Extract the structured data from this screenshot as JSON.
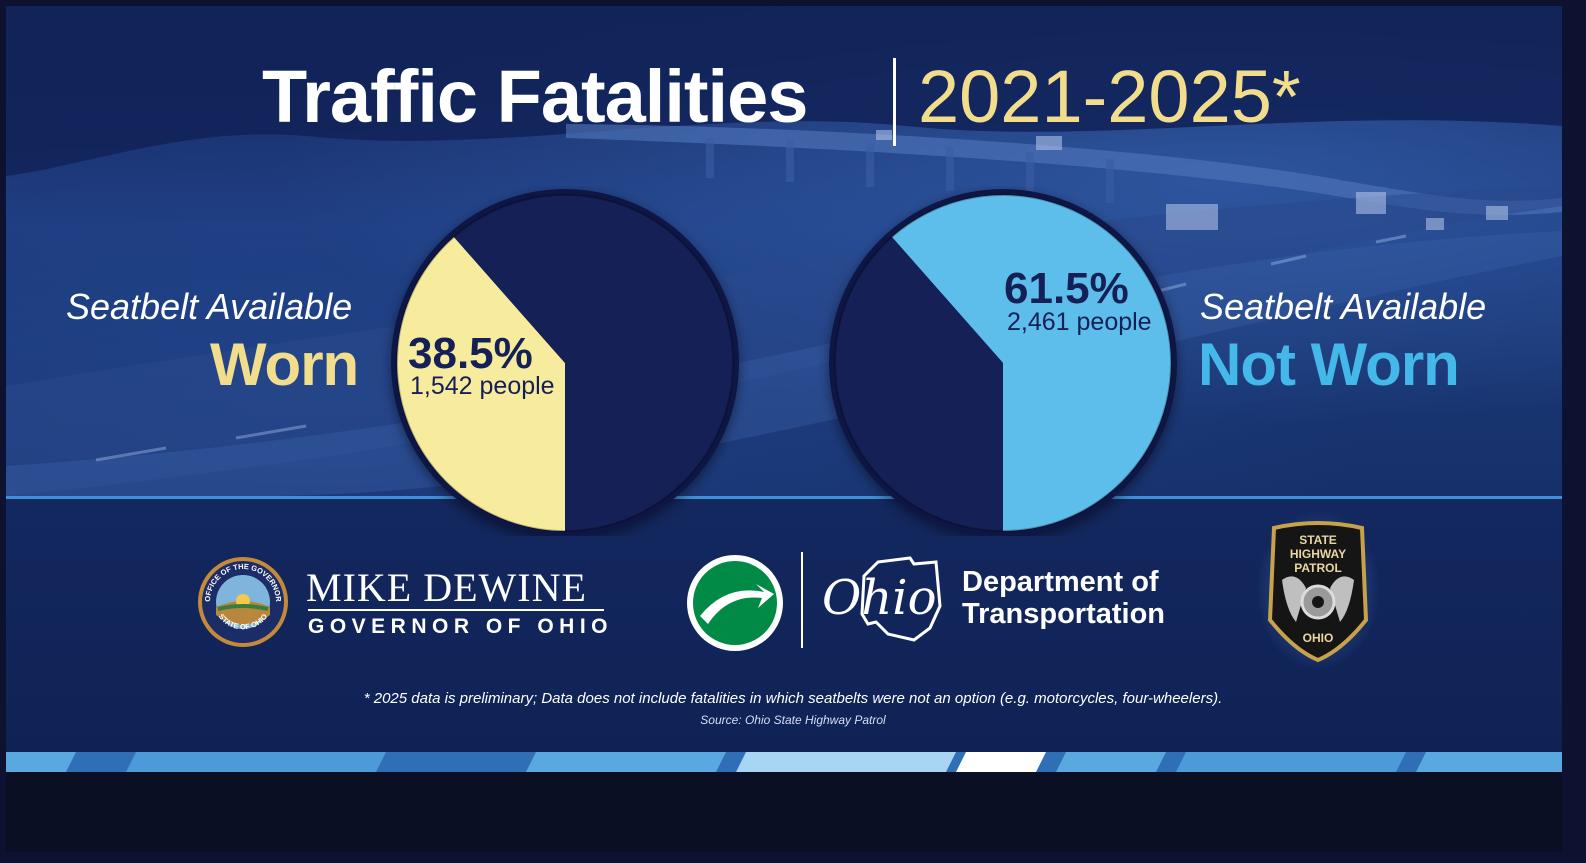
{
  "title": {
    "main": "Traffic Fatalities",
    "years": "2021-2025*"
  },
  "chart_data": [
    {
      "type": "pie",
      "title": "",
      "label_top": "Seatbelt Available",
      "label_big": "Worn",
      "highlight": {
        "name": "Worn",
        "percent": 38.5,
        "value_label": "38.5%",
        "people": "1,542 people"
      },
      "slices": [
        {
          "name": "Worn",
          "percent": 38.5,
          "color": "#f7ec9e"
        },
        {
          "name": "Not Worn",
          "percent": 61.5,
          "color": "#152057"
        }
      ]
    },
    {
      "type": "pie",
      "title": "",
      "label_top": "Seatbelt Available",
      "label_big": "Not Worn",
      "highlight": {
        "name": "Not Worn",
        "percent": 61.5,
        "value_label": "61.5%",
        "people": "2,461 people"
      },
      "slices": [
        {
          "name": "Not Worn",
          "percent": 61.5,
          "color": "#5dbdeb"
        },
        {
          "name": "Worn",
          "percent": 38.5,
          "color": "#152057"
        }
      ]
    }
  ],
  "colors": {
    "worn_accent": "#f2dd8c",
    "not_worn_accent": "#45b8ea",
    "dark_navy": "#152057",
    "band_line": "#3f8fd8"
  },
  "logos": {
    "governor_seal": {
      "icon": "ohio-governor-seal-icon",
      "ring_top": "OFFICE OF THE GOVERNOR",
      "ring_bottom": "STATE OF OHIO"
    },
    "governor_name": "MIKE DEWINE",
    "governor_title": "GOVERNOR OF OHIO",
    "odot_icon": "odot-arrow-logo-icon",
    "ohio_script": "Ohio",
    "odot_line1": "Department of",
    "odot_line2": "Transportation",
    "patrol_badge": {
      "icon": "state-highway-patrol-badge-icon",
      "line1": "STATE",
      "line2": "HIGHWAY",
      "line3": "PATROL",
      "line4": "OHIO"
    }
  },
  "footnote": "* 2025 data is preliminary; Data does not include fatalities in which seatbelts were not an option (e.g. motorcycles, four-wheelers).",
  "source": "Source: Ohio State Highway Patrol"
}
